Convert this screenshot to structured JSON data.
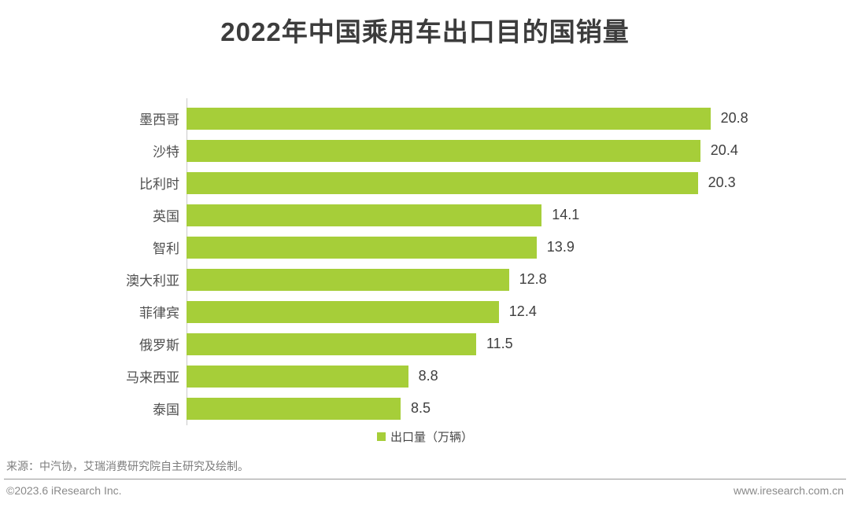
{
  "title": "2022年中国乘用车出口目的国销量",
  "chart_data": {
    "type": "bar",
    "orientation": "horizontal",
    "title": "2022年中国乘用车出口目的国销量",
    "categories": [
      "墨西哥",
      "沙特",
      "比利时",
      "英国",
      "智利",
      "澳大利亚",
      "菲律宾",
      "俄罗斯",
      "马来西亚",
      "泰国"
    ],
    "values": [
      20.8,
      20.4,
      20.3,
      14.1,
      13.9,
      12.8,
      12.4,
      11.5,
      8.8,
      8.5
    ],
    "series_name": "出口量（万辆）",
    "xlim": [
      0,
      22.5
    ],
    "grid": false,
    "legend_position": "bottom",
    "bar_color": "#a6ce39",
    "value_labels_shown": true
  },
  "legend": {
    "label": "出口量（万辆）"
  },
  "source_note": "来源：中汽协，艾瑞消费研究院自主研究及绘制。",
  "footer": {
    "left": "©2023.6 iResearch Inc.",
    "right": "www.iresearch.com.cn"
  }
}
